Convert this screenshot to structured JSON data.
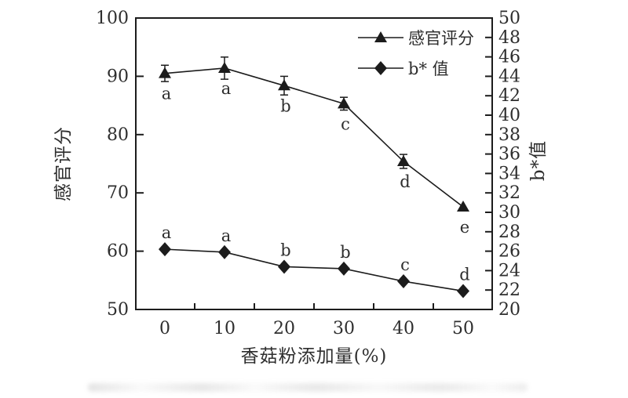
{
  "figure": {
    "background": "#ffffff",
    "ink_color": "#1c1c1c",
    "text_color": "#2e2e2e"
  },
  "chart_data": {
    "type": "line",
    "x_categories": [
      0,
      10,
      20,
      30,
      40,
      50
    ],
    "x_tick_labels": [
      "0",
      "10",
      "20",
      "30",
      "40",
      "50"
    ],
    "xlabel": "香菇粉添加量(%)",
    "left_axis": {
      "label": "感官评分",
      "min": 50,
      "max": 100,
      "tick_step": 10,
      "tick_labels": [
        "50",
        "60",
        "70",
        "80",
        "90",
        "100"
      ]
    },
    "right_axis": {
      "label": "b*值",
      "min": 20,
      "max": 50,
      "tick_step": 2,
      "tick_labels": [
        "20",
        "22",
        "24",
        "26",
        "28",
        "30",
        "32",
        "34",
        "36",
        "38",
        "40",
        "42",
        "44",
        "46",
        "48",
        "50"
      ]
    },
    "grid": false,
    "legend": {
      "position": "top-right"
    },
    "series": [
      {
        "name": "感官评分",
        "axis": "left",
        "marker": "triangle",
        "values": [
          90.5,
          91.4,
          88.4,
          85.3,
          75.4,
          67.6
        ],
        "errors": [
          1.4,
          1.9,
          1.6,
          1.1,
          1.2,
          0
        ],
        "point_labels": [
          "a",
          "a",
          "b",
          "c",
          "d",
          "e"
        ],
        "label_position": "below"
      },
      {
        "name": "b* 值",
        "axis": "right",
        "marker": "diamond",
        "values": [
          26.2,
          25.9,
          24.4,
          24.2,
          22.9,
          21.9
        ],
        "errors": [
          0,
          0,
          0,
          0,
          0,
          0
        ],
        "point_labels": [
          "a",
          "a",
          "b",
          "b",
          "c",
          "d"
        ],
        "label_position": "above"
      }
    ]
  }
}
